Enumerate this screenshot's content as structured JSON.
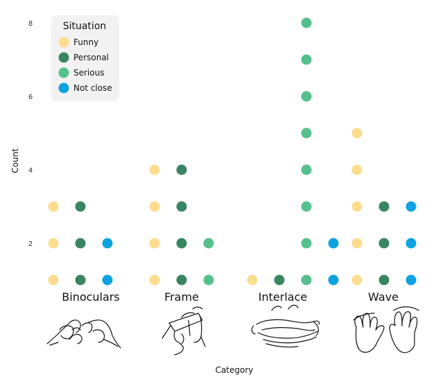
{
  "chart_data": {
    "type": "scatter",
    "title": "",
    "xlabel": "Category",
    "ylabel": "Count",
    "ylim": [
      0.5,
      8.2
    ],
    "yticks": [
      2,
      4,
      6,
      8
    ],
    "categories": [
      "Binoculars",
      "Frame",
      "Interlace",
      "Wave"
    ],
    "legend": {
      "title": "Situation",
      "position": "top-left"
    },
    "series": [
      {
        "name": "Funny",
        "color": "#FCDC8E",
        "values": [
          3,
          4,
          1,
          5
        ]
      },
      {
        "name": "Personal",
        "color": "#3A8561",
        "values": [
          3,
          4,
          1,
          3
        ]
      },
      {
        "name": "Serious",
        "color": "#56C08D",
        "values": [
          0,
          2,
          8,
          0
        ]
      },
      {
        "name": "Not close",
        "color": "#0EA3E0",
        "values": [
          2,
          0,
          2,
          3
        ]
      }
    ]
  }
}
